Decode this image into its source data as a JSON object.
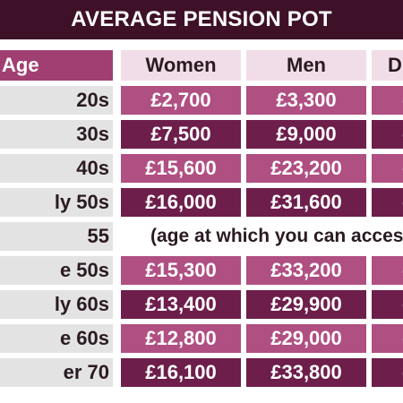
{
  "title": "AVERAGE PENSION POT",
  "headers": {
    "age": "Age",
    "women": "Women",
    "men": "Men",
    "diff": "Di"
  },
  "rows": [
    {
      "age": "20s",
      "women": "£2,700",
      "men": "£3,300",
      "diff": "-"
    },
    {
      "age": "30s",
      "women": "£7,500",
      "men": "£9,000",
      "diff": "-"
    },
    {
      "age": "40s",
      "women": "£15,600",
      "men": "£23,200",
      "diff": "-"
    },
    {
      "age": "ly 50s",
      "women": "£16,000",
      "men": "£31,600",
      "diff": "-"
    },
    {
      "age": "55",
      "note": "(age at which you can access p"
    },
    {
      "age": "e 50s",
      "women": "£15,300",
      "men": "£33,200",
      "diff": "-"
    },
    {
      "age": "ly 60s",
      "women": "£13,400",
      "men": "£29,900",
      "diff": "-"
    },
    {
      "age": "e 60s",
      "women": "£12,800",
      "men": "£29,000",
      "diff": "-"
    },
    {
      "age": "er 70",
      "women": "£16,100",
      "men": "£33,800",
      "diff": "-"
    }
  ],
  "colors": {
    "title_bg": "#3e1128",
    "header_age_bg": "#a13f72",
    "header_col_bg": "#f1dde7",
    "row_light": "#b04f82",
    "row_dark": "#6d1e4b",
    "age_bg": "#e3e3e3"
  }
}
